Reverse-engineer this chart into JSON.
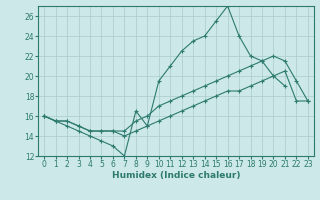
{
  "xlabel": "Humidex (Indice chaleur)",
  "background_color": "#cce8e8",
  "grid_color": "#aacccc",
  "line_color": "#2d7a6e",
  "x_hours": [
    0,
    1,
    2,
    3,
    4,
    5,
    6,
    7,
    8,
    9,
    10,
    11,
    12,
    13,
    14,
    15,
    16,
    17,
    18,
    19,
    20,
    21,
    22,
    23
  ],
  "line1_y": [
    16.0,
    15.5,
    15.0,
    14.5,
    14.0,
    13.5,
    13.0,
    12.0,
    16.5,
    15.0,
    19.5,
    21.0,
    22.5,
    23.5,
    24.0,
    25.5,
    27.0,
    24.0,
    22.0,
    21.5,
    20.0,
    19.0,
    null,
    null
  ],
  "line2_y": [
    16.0,
    15.5,
    15.5,
    15.0,
    14.5,
    14.5,
    14.5,
    14.5,
    15.5,
    16.0,
    17.0,
    17.5,
    18.0,
    18.5,
    19.0,
    19.5,
    20.0,
    20.5,
    21.0,
    21.5,
    22.0,
    21.5,
    19.5,
    17.5
  ],
  "line3_y": [
    16.0,
    15.5,
    15.5,
    15.0,
    14.5,
    14.5,
    14.5,
    14.0,
    14.5,
    15.0,
    15.5,
    16.0,
    16.5,
    17.0,
    17.5,
    18.0,
    18.5,
    18.5,
    19.0,
    19.5,
    20.0,
    20.5,
    17.5,
    17.5
  ],
  "ylim": [
    12,
    27
  ],
  "xlim": [
    -0.5,
    23.5
  ],
  "yticks": [
    12,
    14,
    16,
    18,
    20,
    22,
    24,
    26
  ],
  "xticks": [
    0,
    1,
    2,
    3,
    4,
    5,
    6,
    7,
    8,
    9,
    10,
    11,
    12,
    13,
    14,
    15,
    16,
    17,
    18,
    19,
    20,
    21,
    22,
    23
  ],
  "figsize": [
    3.2,
    2.0
  ],
  "dpi": 100
}
